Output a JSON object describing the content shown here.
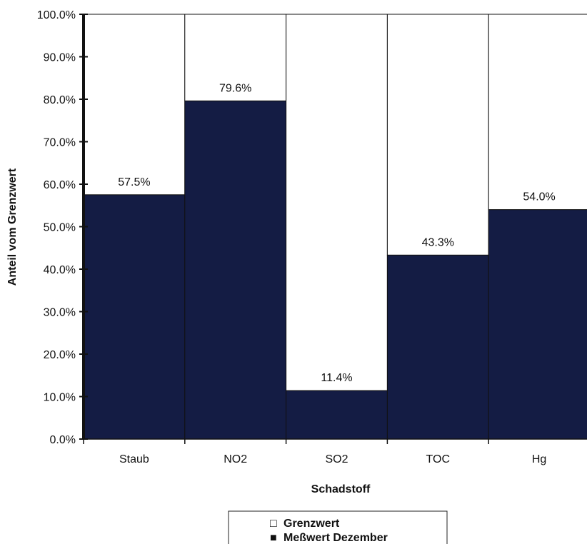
{
  "chart_data": {
    "type": "bar",
    "stacked": true,
    "categories": [
      "Staub",
      "NO2",
      "SO2",
      "TOC",
      "Hg"
    ],
    "series": [
      {
        "name": "Meßwert Dezember",
        "values": [
          57.5,
          79.6,
          11.4,
          43.3,
          54.0
        ],
        "color": "#141c44"
      },
      {
        "name": "Grenzwert",
        "values": [
          42.5,
          20.4,
          88.6,
          56.7,
          46.0
        ],
        "color": "#ffffff"
      }
    ],
    "data_labels": [
      "57.5%",
      "79.6%",
      "11.4%",
      "43.3%",
      "54.0%"
    ],
    "y_ticks": [
      "0.0%",
      "10.0%",
      "20.0%",
      "30.0%",
      "40.0%",
      "50.0%",
      "60.0%",
      "70.0%",
      "80.0%",
      "90.0%",
      "100.0%"
    ],
    "xlabel": "Schadstoff",
    "ylabel": "Anteil vom Grenzwert",
    "ylim": [
      0,
      100
    ],
    "grid": false,
    "legend": {
      "placement": "bottom",
      "entries": [
        {
          "marker": "□",
          "label": "Grenzwert"
        },
        {
          "marker": "■",
          "label": "Meßwert Dezember"
        }
      ]
    }
  }
}
